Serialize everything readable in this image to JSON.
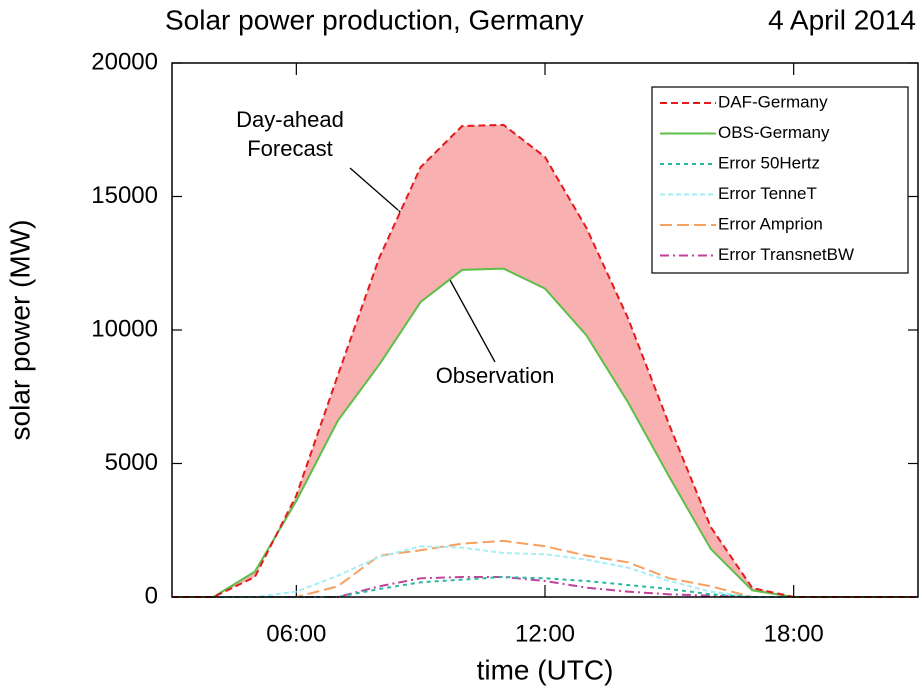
{
  "chart_data": {
    "type": "line",
    "title": "Solar power production, Germany",
    "subtitle": "4 April 2014",
    "x_label": "time (UTC)",
    "y_label": "solar power (MW)",
    "x": [
      3,
      4,
      5,
      6,
      7,
      8,
      9,
      10,
      11,
      12,
      13,
      14,
      15,
      16,
      17,
      18,
      19,
      20,
      21
    ],
    "series": [
      {
        "name": "DAF-Germany",
        "color": "#e41a1c",
        "dash": "7,4",
        "values": [
          0,
          0,
          750,
          3800,
          8300,
          12700,
          16100,
          17640,
          17680,
          16480,
          13820,
          10450,
          6440,
          2620,
          340,
          0,
          0,
          0,
          0
        ]
      },
      {
        "name": "OBS-Germany",
        "color": "#5cbf48",
        "dash": "none",
        "values": [
          0,
          0,
          950,
          3600,
          6600,
          8700,
          11050,
          12250,
          12300,
          11550,
          9800,
          7300,
          4500,
          1800,
          250,
          0,
          0,
          0,
          0
        ]
      },
      {
        "name": "Error 50Hertz",
        "color": "#2ab8a0",
        "dash": "4,4",
        "values": [
          0,
          0,
          0,
          0,
          0,
          300,
          550,
          650,
          750,
          700,
          600,
          450,
          300,
          100,
          0,
          0,
          0,
          0,
          0
        ]
      },
      {
        "name": "Error TenneT",
        "color": "#a6eef6",
        "dash": "5,3",
        "values": [
          0,
          0,
          0,
          200,
          800,
          1500,
          1900,
          1850,
          1650,
          1600,
          1400,
          1100,
          600,
          200,
          0,
          0,
          0,
          0,
          0
        ]
      },
      {
        "name": "Error Amprion",
        "color": "#f8a060",
        "dash": "12,5",
        "values": [
          0,
          0,
          0,
          0,
          400,
          1550,
          1750,
          2000,
          2100,
          1900,
          1550,
          1300,
          700,
          400,
          0,
          0,
          0,
          0,
          0
        ]
      },
      {
        "name": "Error TransnetBW",
        "color": "#c0409a",
        "dash": "9,4,2,4",
        "values": [
          0,
          0,
          0,
          0,
          0,
          400,
          700,
          750,
          750,
          600,
          350,
          200,
          100,
          50,
          0,
          0,
          0,
          0,
          0
        ]
      }
    ],
    "band_color": "#f9b0b0",
    "annotations": [
      {
        "lines": [
          "Day-ahead",
          "Forecast"
        ]
      },
      {
        "lines": [
          "Observation"
        ]
      }
    ],
    "xlim": [
      3,
      21
    ],
    "xticks": [
      {
        "value": 6,
        "label": "06:00"
      },
      {
        "value": 12,
        "label": "12:00"
      },
      {
        "value": 18,
        "label": "18:00"
      }
    ],
    "ylim": [
      0,
      20000
    ],
    "yticks": [
      0,
      5000,
      10000,
      15000,
      20000
    ],
    "legend": "upper right"
  }
}
